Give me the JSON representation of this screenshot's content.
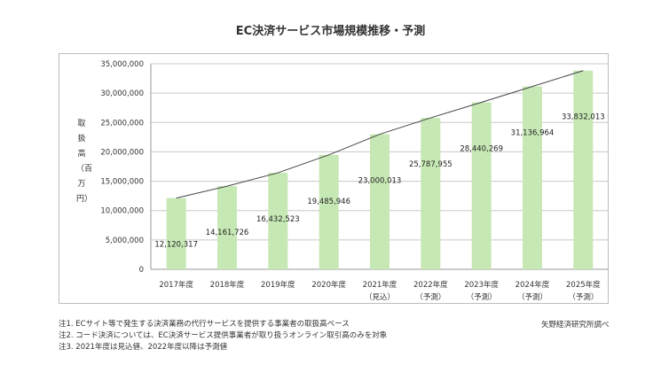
{
  "chart_data": {
    "type": "bar",
    "title": "EC決済サービス市場規模推移・予測",
    "ylabel": "取扱高（百万円）",
    "categories": [
      "2017年度",
      "2018年度",
      "2019年度",
      "2020年度",
      "2021年度",
      "2022年度",
      "2023年度",
      "2024年度",
      "2025年度"
    ],
    "category_notes": [
      "",
      "",
      "",
      "",
      "（見込）",
      "（予測）",
      "（予測）",
      "（予測）",
      "（予測）"
    ],
    "values": [
      12120317,
      14161726,
      16432523,
      19485946,
      23000013,
      25787955,
      28440269,
      31136964,
      33832013
    ],
    "value_labels": [
      "12,120,317",
      "14,161,726",
      "16,432,523",
      "19,485,946",
      "23,000,013",
      "25,787,955",
      "28,440,269",
      "31,136,964",
      "33,832,013"
    ],
    "ylim": [
      0,
      35000000
    ],
    "yticks": [
      0,
      5000000,
      10000000,
      15000000,
      20000000,
      25000000,
      30000000,
      35000000
    ],
    "ytick_labels": [
      "0",
      "5,000,000",
      "10,000,000",
      "15,000,000",
      "20,000,000",
      "25,000,000",
      "30,000,000",
      "35,000,000"
    ],
    "grid": true,
    "trend_line": true,
    "colors": {
      "bar": "#c6e8b4",
      "grid": "#c8c8c8",
      "line": "#444444",
      "axis": "#9a9a9a"
    }
  },
  "notes": [
    "注1. ECサイト等で発生する決済業務の代行サービスを提供する事業者の取扱高ベース",
    "注2. コード決済については、EC決済サービス提供事業者が取り扱うオンライン取引高のみを対象",
    "注3. 2021年度は見込値、2022年度以降は予測値"
  ],
  "source": "矢野経済研究所調べ"
}
